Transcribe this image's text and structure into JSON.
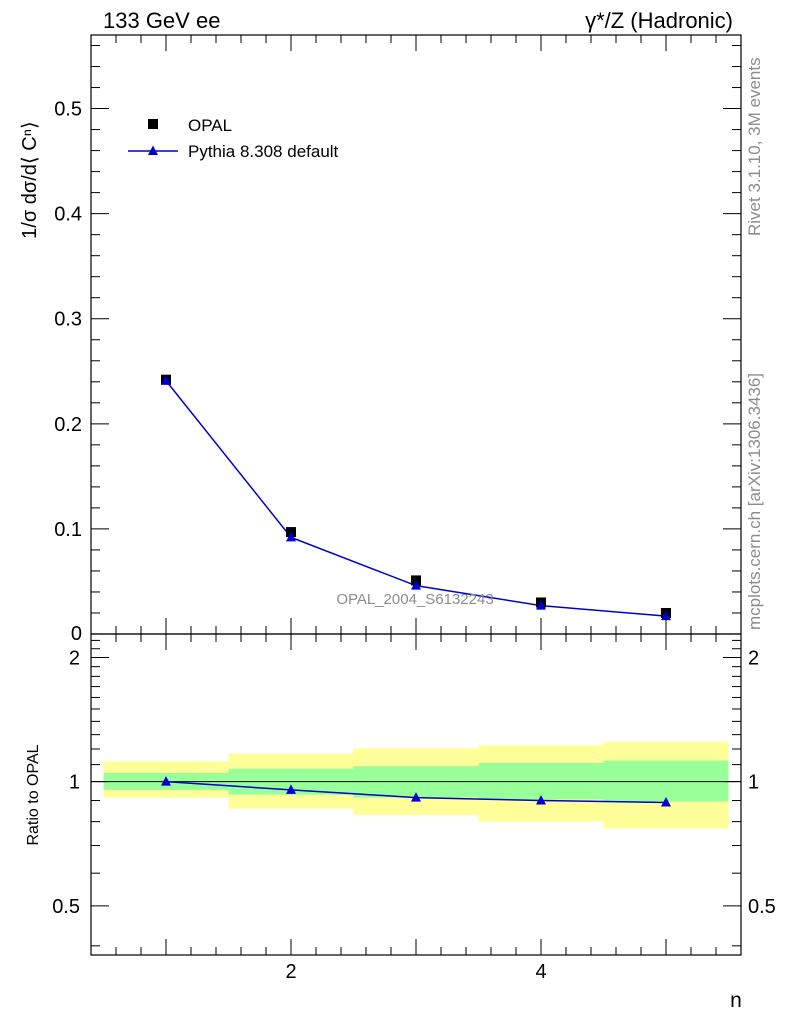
{
  "header": {
    "left": "133 GeV ee",
    "right": "γ*/Z (Hadronic)"
  },
  "side_labels": {
    "rivet": "Rivet 3.1.10,  3M events",
    "mcplots": "mcplots.cern.ch [arXiv:1306.3436]"
  },
  "watermark": "OPAL_2004_S6132243",
  "colors": {
    "data_marker": "#000000",
    "mc_line": "#0000cc",
    "band_inner": "#99ff99",
    "band_outer": "#ffff99"
  },
  "chart_data": [
    {
      "type": "scatter",
      "panel": "main",
      "ylabel": "1/σ dσ/d⟨ Cⁿ⟩",
      "xlim": [
        0.4,
        5.6
      ],
      "ylim": [
        0,
        0.57
      ],
      "y_ticks": [
        "0.1",
        "0.2",
        "0.3",
        "0.4",
        "0.5"
      ],
      "y_tick_values": [
        0.1,
        0.2,
        0.3,
        0.4,
        0.5
      ],
      "y_zero_label": "0",
      "legend_position": "top-left",
      "series": [
        {
          "name": "OPAL",
          "marker": "square",
          "x": [
            1,
            2,
            3,
            4,
            5
          ],
          "values": [
            0.242,
            0.097,
            0.051,
            0.03,
            0.02
          ]
        },
        {
          "name": "Pythia 8.308 default",
          "marker": "triangle",
          "x": [
            1,
            2,
            3,
            4,
            5
          ],
          "values": [
            0.241,
            0.092,
            0.046,
            0.027,
            0.017
          ]
        }
      ]
    },
    {
      "type": "line",
      "panel": "ratio",
      "ylabel": "Ratio to OPAL",
      "xlabel": "n",
      "xlim": [
        0.4,
        5.6
      ],
      "ylim": [
        0.38,
        2.28
      ],
      "log_y": true,
      "x_ticks": [
        "2",
        "4"
      ],
      "x_tick_values": [
        2,
        4
      ],
      "y_ticks": [
        "0.5",
        "1",
        "2"
      ],
      "y_tick_values": [
        0.5,
        1,
        2
      ],
      "bins": [
        {
          "x_low": 0.5,
          "x_high": 1.5,
          "inner": [
            0.955,
            1.05
          ],
          "outer": [
            0.915,
            1.12
          ]
        },
        {
          "x_low": 1.5,
          "x_high": 2.5,
          "inner": [
            0.93,
            1.075
          ],
          "outer": [
            0.86,
            1.17
          ]
        },
        {
          "x_low": 2.5,
          "x_high": 3.5,
          "inner": [
            0.915,
            1.09
          ],
          "outer": [
            0.83,
            1.205
          ]
        },
        {
          "x_low": 3.5,
          "x_high": 4.5,
          "inner": [
            0.905,
            1.11
          ],
          "outer": [
            0.8,
            1.225
          ]
        },
        {
          "x_low": 4.5,
          "x_high": 5.5,
          "inner": [
            0.895,
            1.125
          ],
          "outer": [
            0.77,
            1.25
          ]
        }
      ],
      "series": [
        {
          "name": "Pythia 8.308 default",
          "x": [
            1,
            2,
            3,
            4,
            5
          ],
          "values": [
            1.0,
            0.955,
            0.915,
            0.9,
            0.89
          ]
        }
      ]
    }
  ]
}
